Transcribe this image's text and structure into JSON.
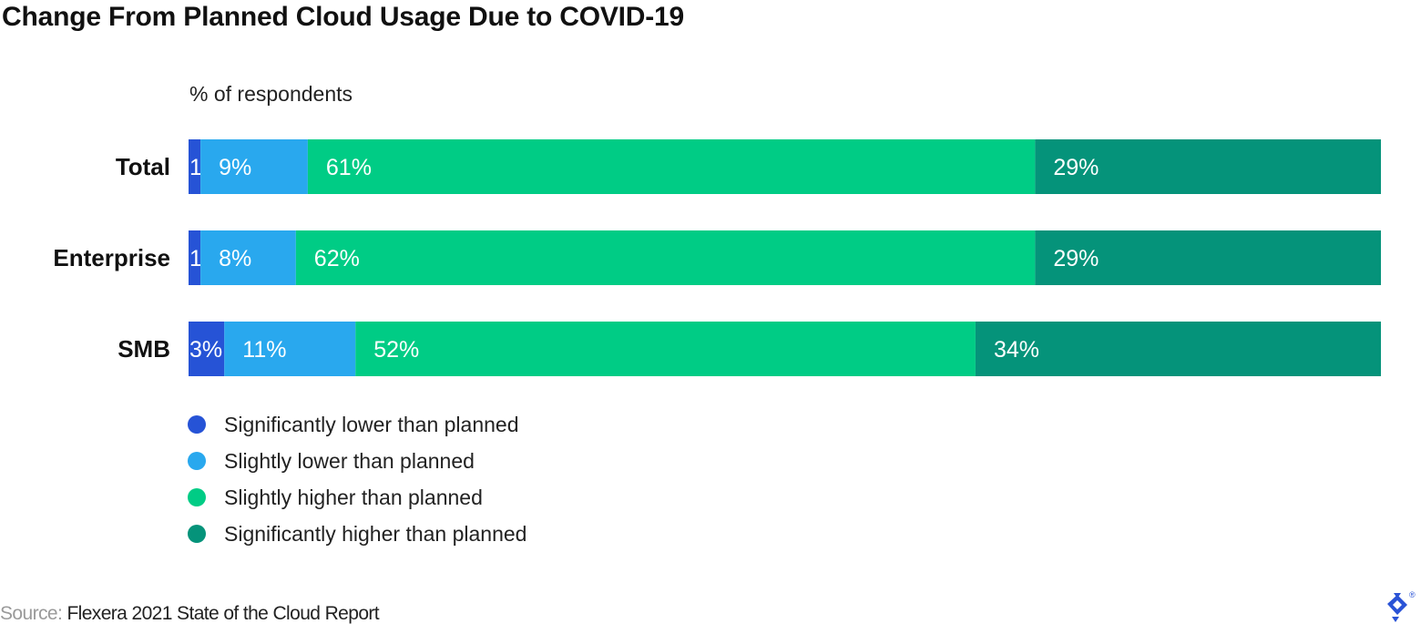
{
  "chart_data": {
    "type": "bar",
    "orientation": "horizontal",
    "stacked": true,
    "title": "Change From Planned Cloud Usage Due to COVID-19",
    "subtitle": "% of respondents",
    "categories": [
      "Total",
      "Enterprise",
      "SMB"
    ],
    "series": [
      {
        "name": "Significantly lower than planned",
        "color": "#2653d6",
        "values": [
          1,
          1,
          3
        ]
      },
      {
        "name": "Slightly lower than planned",
        "color": "#29a8ee",
        "values": [
          9,
          8,
          11
        ]
      },
      {
        "name": "Slightly higher than planned",
        "color": "#00cc85",
        "values": [
          61,
          62,
          52
        ]
      },
      {
        "name": "Significantly higher than planned",
        "color": "#05937a",
        "values": [
          29,
          29,
          34
        ]
      }
    ],
    "value_suffix": "%",
    "xlim": [
      0,
      100
    ],
    "grid": false,
    "legend_position": "bottom-left"
  },
  "source": {
    "prefix": "Source:",
    "text": "Flexera 2021 State of the Cloud Report"
  },
  "logo": {
    "icon": "toptal-logo",
    "mark": "®"
  }
}
